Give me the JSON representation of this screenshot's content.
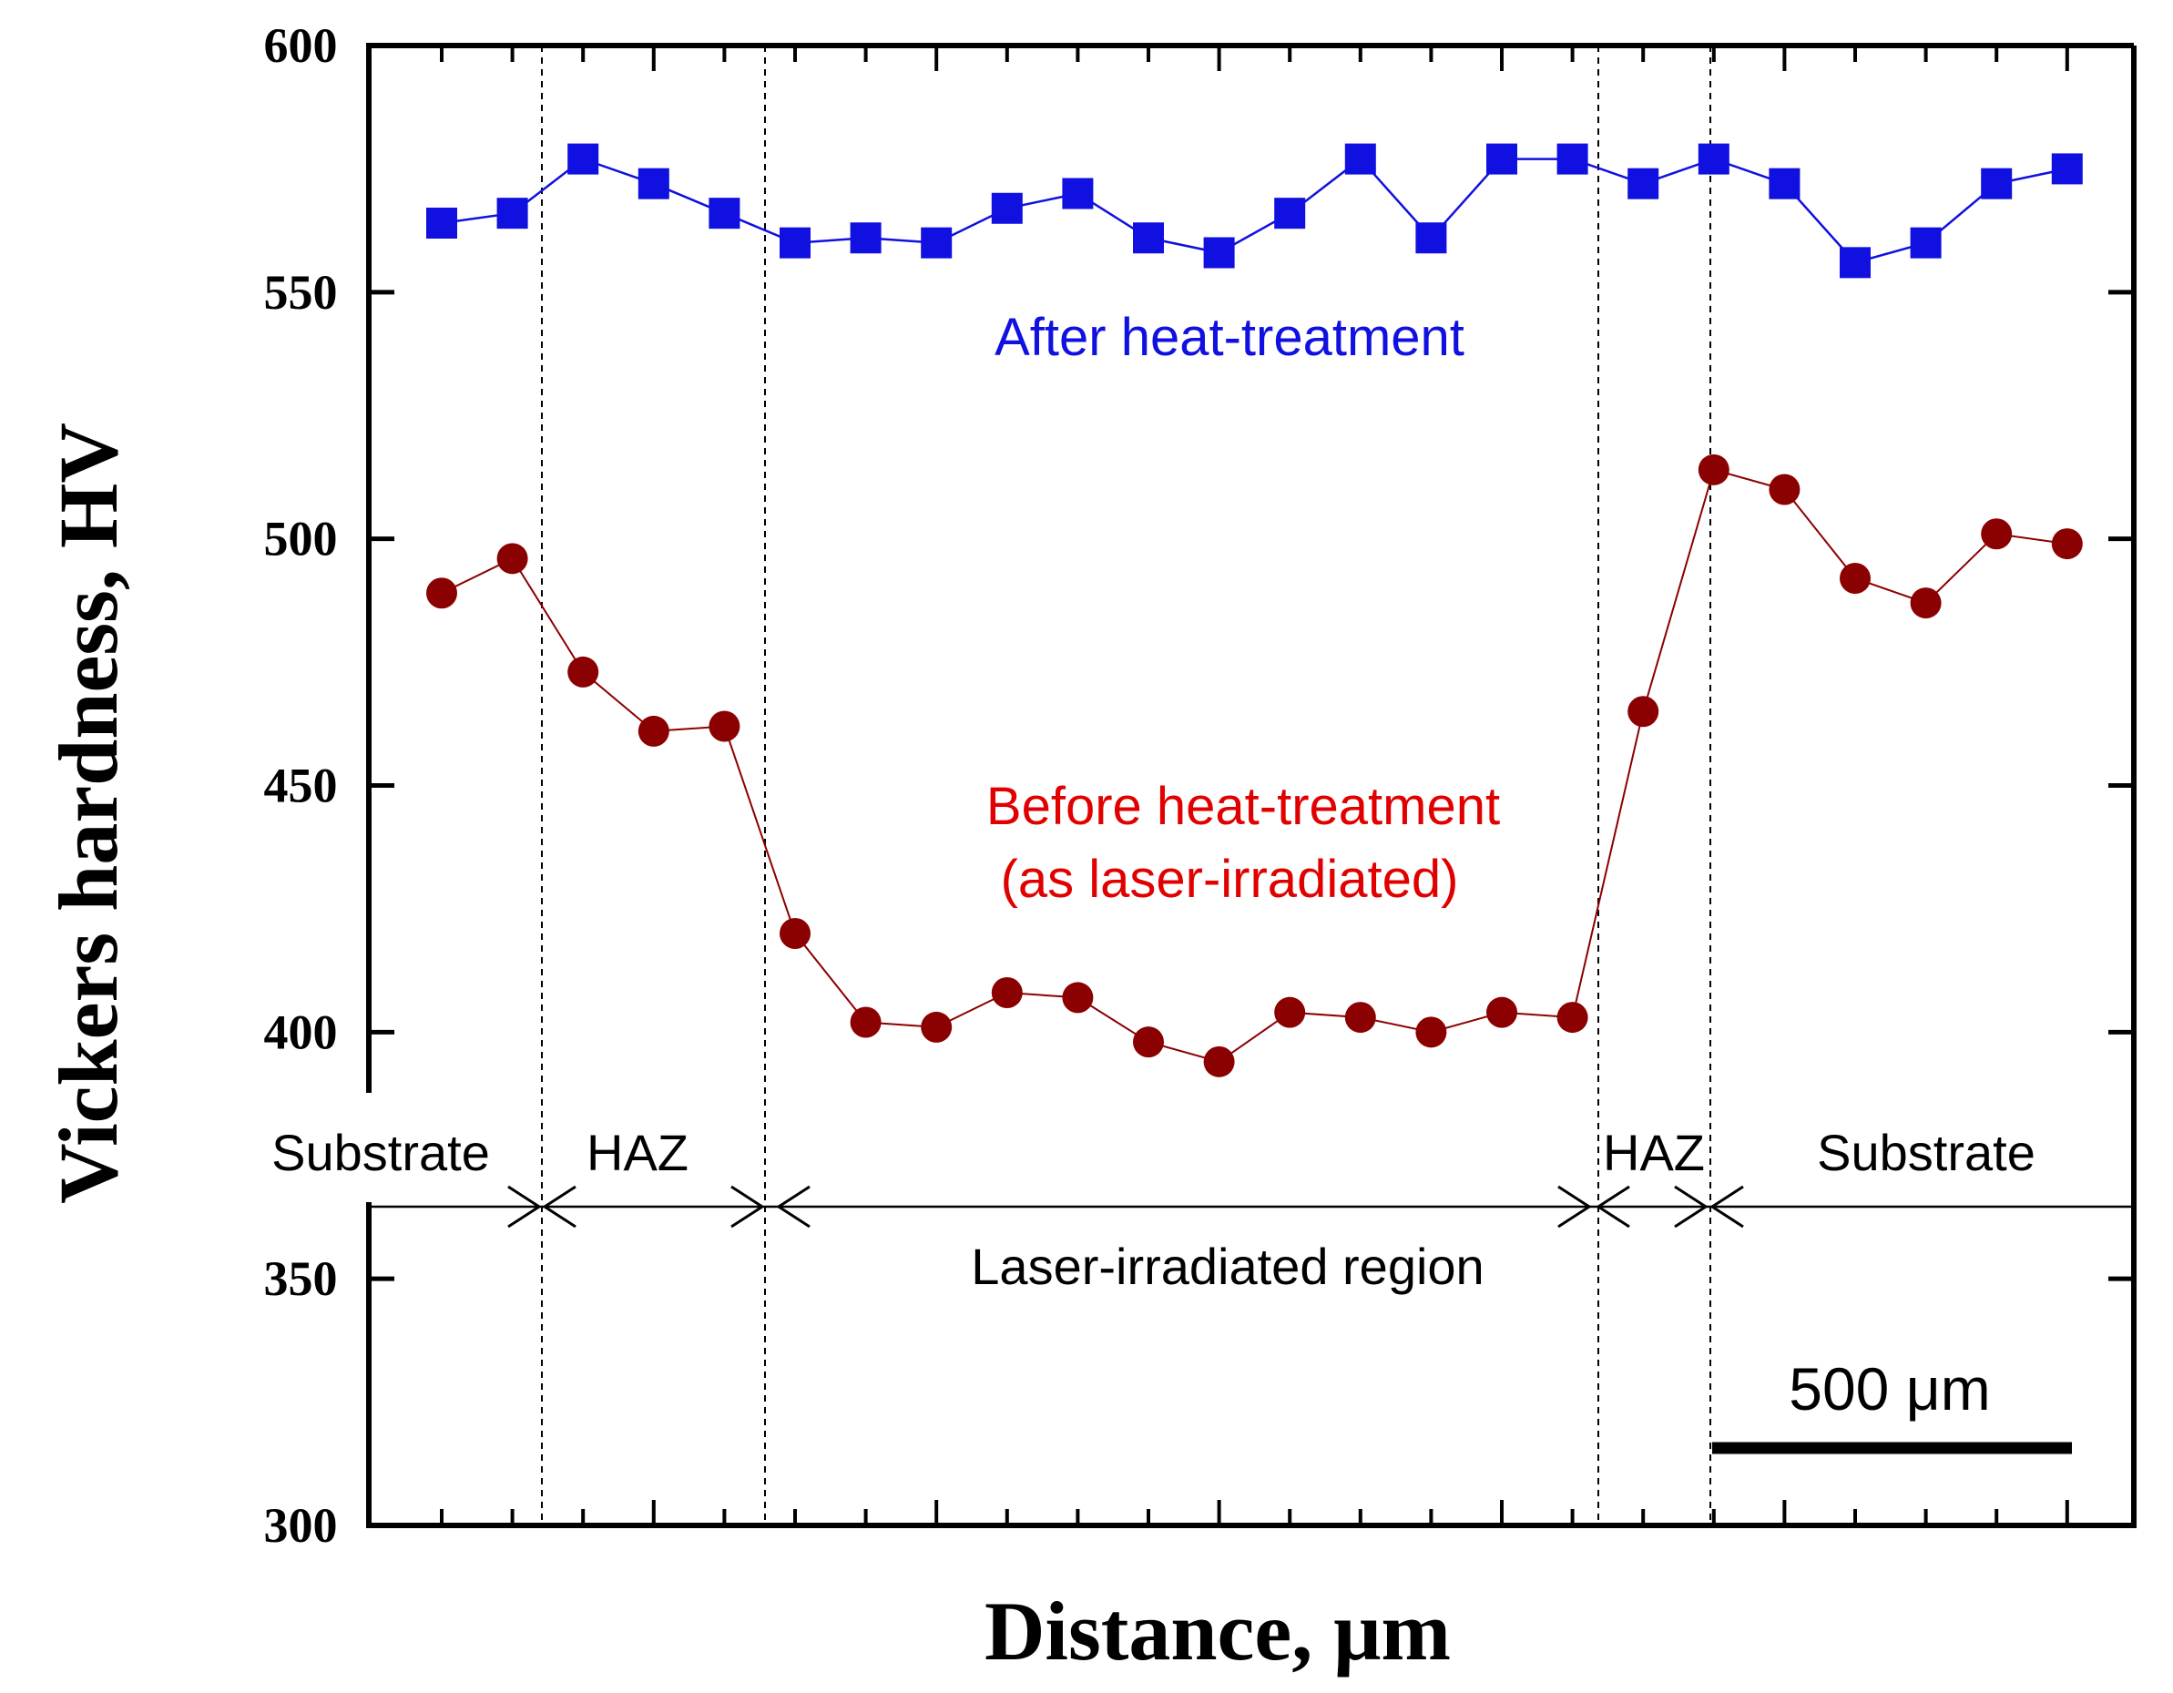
{
  "chart_data": {
    "type": "line",
    "xlabel": "Distance, μm",
    "ylabel": "Vickers hardness, HV",
    "ylim": [
      300,
      600
    ],
    "yticks": [
      300,
      350,
      400,
      450,
      500,
      550,
      600
    ],
    "x": [
      1,
      2,
      3,
      4,
      5,
      6,
      7,
      8,
      9,
      10,
      11,
      12,
      13,
      14,
      15,
      16,
      17,
      18,
      19,
      20,
      21,
      22,
      23,
      24
    ],
    "series": [
      {
        "name": "After heat-treatment",
        "label": "After heat-treatment",
        "marker": "square",
        "color": "#1010e0",
        "values": [
          564,
          566,
          577,
          572,
          566,
          560,
          561,
          560,
          567,
          570,
          561,
          558,
          566,
          577,
          561,
          577,
          577,
          572,
          577,
          572,
          556,
          560,
          572,
          575
        ]
      },
      {
        "name": "Before heat-treatment (as laser-irradiated)",
        "label_line1": "Before heat-treatment",
        "label_line2": "(as laser-irradiated)",
        "marker": "circle",
        "color": "#8b0000",
        "label_color": "#e00000",
        "values": [
          489,
          496,
          473,
          461,
          462,
          420,
          402,
          401,
          408,
          407,
          398,
          394,
          404,
          403,
          400,
          404,
          403,
          465,
          514,
          510,
          492,
          487,
          501,
          499
        ]
      }
    ],
    "regions": [
      {
        "label": "Substrate"
      },
      {
        "label": "HAZ"
      },
      {
        "label": "Laser-irradiated region"
      },
      {
        "label": "HAZ"
      },
      {
        "label": "Substrate"
      }
    ],
    "scale_bar": "500 μm"
  }
}
